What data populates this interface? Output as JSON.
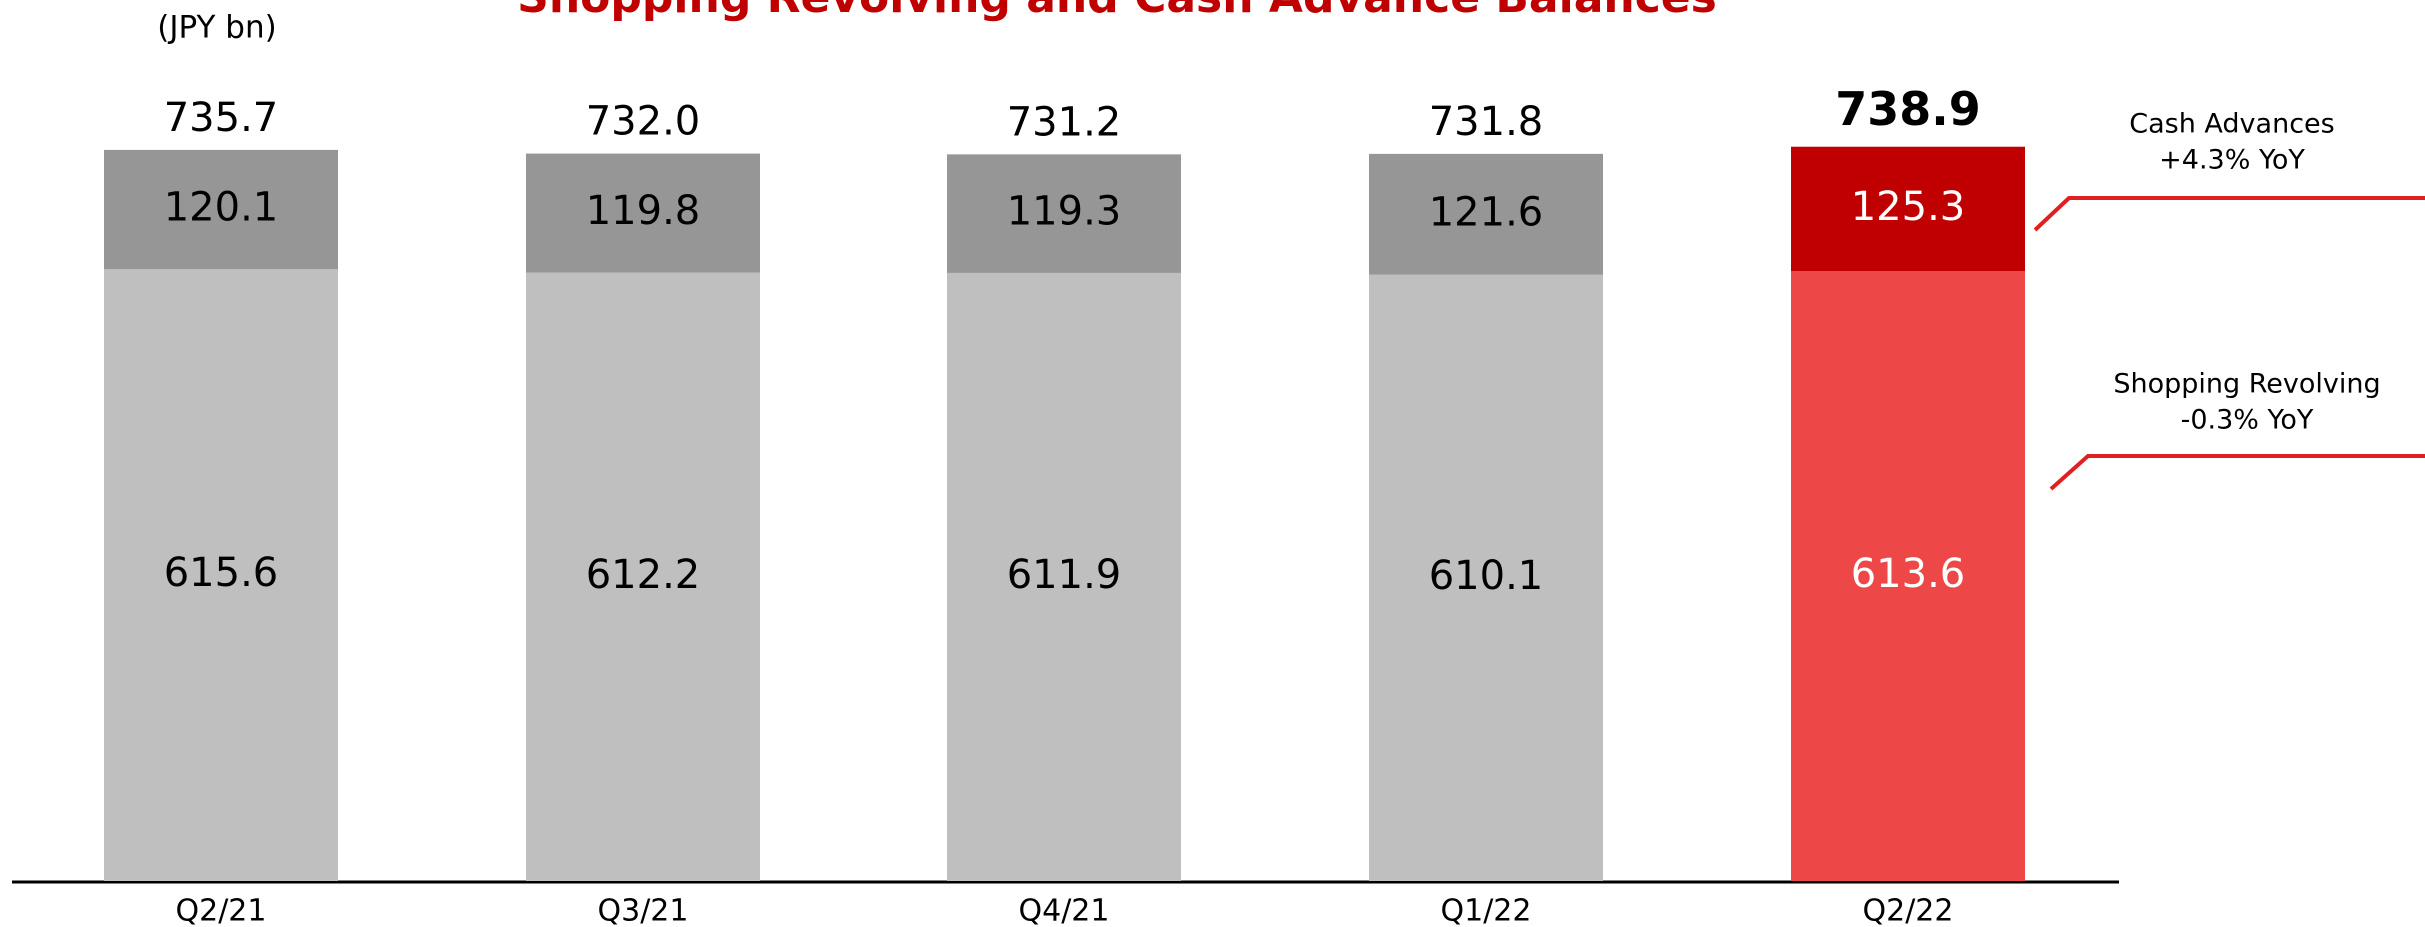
{
  "chart_data": {
    "type": "stacked_bar",
    "title": "Shopping Revolving and Cash Advance Balances",
    "unit_label": "(JPY bn)",
    "categories": [
      "Q2/21",
      "Q3/21",
      "Q4/21",
      "Q1/22",
      "Q2/22"
    ],
    "series": [
      {
        "name": "Shopping Revolving",
        "colors": [
          "#bfbfbf",
          "#bfbfbf",
          "#bfbfbf",
          "#bfbfbf",
          "#ee4747"
        ],
        "values": [
          615.6,
          612.2,
          611.9,
          610.1,
          613.6
        ]
      },
      {
        "name": "Cash Advances",
        "colors": [
          "#969696",
          "#969696",
          "#969696",
          "#969696",
          "#c00000"
        ],
        "values": [
          120.1,
          119.8,
          119.3,
          121.6,
          125.3
        ]
      }
    ],
    "totals": [
      735.7,
      732.0,
      731.2,
      731.8,
      738.9
    ],
    "total_labels": [
      "735.7",
      "732.0",
      "731.2",
      "731.8",
      "738.9"
    ],
    "ylim": [
      0,
      800
    ],
    "annotations": [
      {
        "lines": [
          "Cash Advances",
          "+4.3% YoY"
        ],
        "series": 1
      },
      {
        "lines": [
          "Shopping Revolving",
          "-0.3% YoY"
        ],
        "series": 0
      }
    ]
  }
}
